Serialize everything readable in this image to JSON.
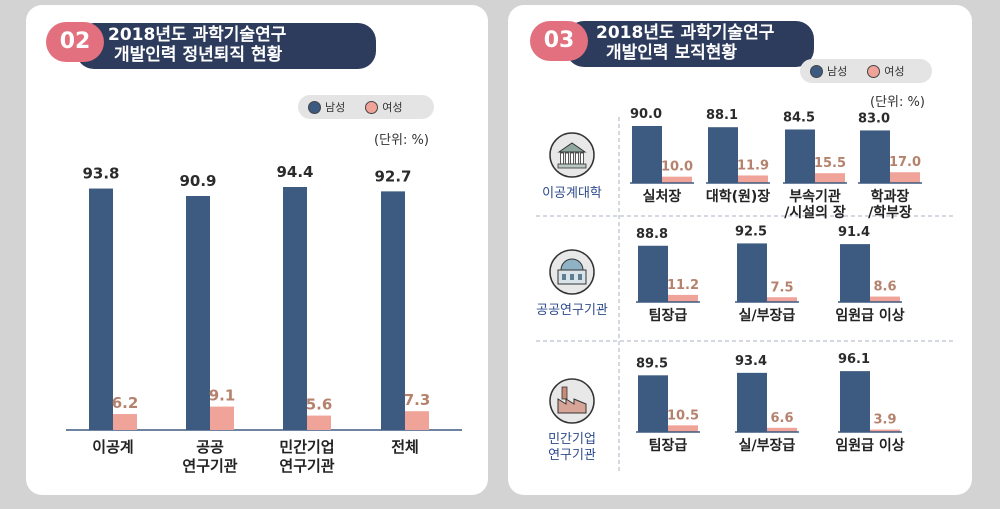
{
  "left": {
    "badge": "02",
    "title_line1": "2018년도 과학기술연구",
    "title_line2": "개발인력 정년퇴직 현황",
    "legend": {
      "male": "남성",
      "female": "여성"
    },
    "unit": "(단위: %)"
  },
  "right": {
    "badge": "03",
    "title_line1": "2018년도 과학기술연구",
    "title_line2": "개발인력 보직현황",
    "legend": {
      "male": "남성",
      "female": "여성"
    },
    "unit": "(단위: %)"
  },
  "colors": {
    "male": "#3d5a80",
    "female": "#f0a398",
    "title_bg": "#2d3b5c",
    "badge": "#e2707e",
    "male_label": "#2b2b2b",
    "female_label": "#b5826e"
  },
  "chart_data": [
    {
      "type": "bar",
      "title": "2018년도 과학기술연구 개발인력 정년퇴직 현황",
      "unit": "(단위: %)",
      "categories": [
        "이공계",
        "공공\n연구기관",
        "민간기업\n연구기관",
        "전체"
      ],
      "series": [
        {
          "name": "남성",
          "values": [
            93.8,
            90.9,
            94.4,
            92.7
          ]
        },
        {
          "name": "여성",
          "values": [
            6.2,
            9.1,
            5.6,
            7.3
          ]
        }
      ],
      "ylim": [
        0,
        100
      ],
      "legend": "top-right"
    },
    {
      "type": "bar",
      "title": "2018년도 과학기술연구 개발인력 보직현황",
      "unit": "(단위: %)",
      "legend": "top-right",
      "ylim": [
        0,
        100
      ],
      "groups": [
        {
          "name": "이공계대학",
          "icon": "university-building-icon",
          "categories": [
            "실처장",
            "대학(원)장",
            "부속기관\n/시설의 장",
            "학과장\n/학부장"
          ],
          "series": [
            {
              "name": "남성",
              "values": [
                90.0,
                88.1,
                84.5,
                83.0
              ]
            },
            {
              "name": "여성",
              "values": [
                10.0,
                11.9,
                15.5,
                17.0
              ]
            }
          ]
        },
        {
          "name": "공공연구기관",
          "icon": "observatory-building-icon",
          "categories": [
            "팀장급",
            "실/부장급",
            "임원급 이상"
          ],
          "series": [
            {
              "name": "남성",
              "values": [
                88.8,
                92.5,
                91.4
              ]
            },
            {
              "name": "여성",
              "values": [
                11.2,
                7.5,
                8.6
              ]
            }
          ]
        },
        {
          "name": "민간기업\n연구기관",
          "icon": "factory-icon",
          "categories": [
            "팀장급",
            "실/부장급",
            "임원급 이상"
          ],
          "series": [
            {
              "name": "남성",
              "values": [
                89.5,
                93.4,
                96.1
              ]
            },
            {
              "name": "여성",
              "values": [
                10.5,
                6.6,
                3.9
              ]
            }
          ]
        }
      ]
    }
  ]
}
